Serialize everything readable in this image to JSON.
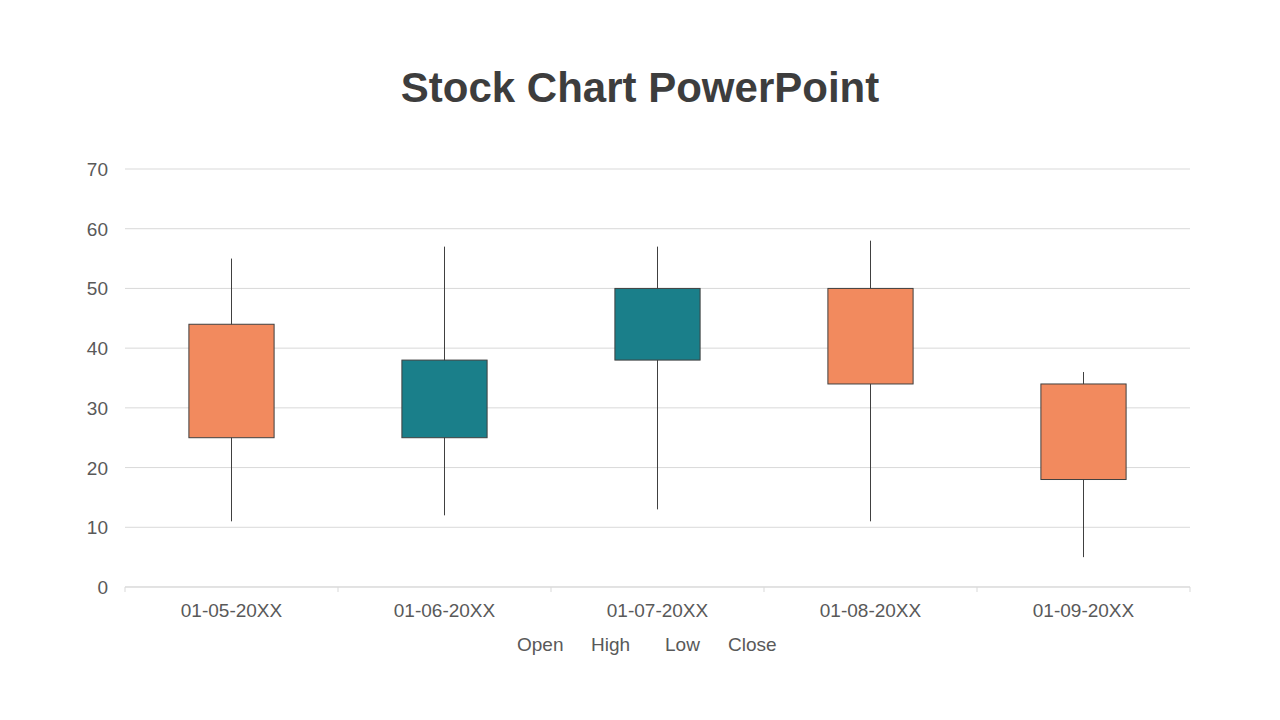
{
  "chart_data": {
    "type": "candlestick",
    "title": "Stock Chart PowerPoint",
    "categories": [
      "01-05-20XX",
      "01-06-20XX",
      "01-07-20XX",
      "01-08-20XX",
      "01-09-20XX"
    ],
    "series": [
      {
        "name": "Open",
        "values": [
          44,
          25,
          38,
          50,
          34
        ]
      },
      {
        "name": "High",
        "values": [
          55,
          57,
          57,
          58,
          36
        ]
      },
      {
        "name": "Low",
        "values": [
          11,
          12,
          13,
          11,
          5
        ]
      },
      {
        "name": "Close",
        "values": [
          25,
          38,
          50,
          34,
          18
        ]
      }
    ],
    "colors": [
      "#f28a5e",
      "#1a7f8a",
      "#1a7f8a",
      "#f28a5e",
      "#f28a5e"
    ],
    "ylim": [
      0,
      70
    ],
    "yticks": [
      0,
      10,
      20,
      30,
      40,
      50,
      60,
      70
    ],
    "grid": true,
    "legend": "bottom"
  }
}
